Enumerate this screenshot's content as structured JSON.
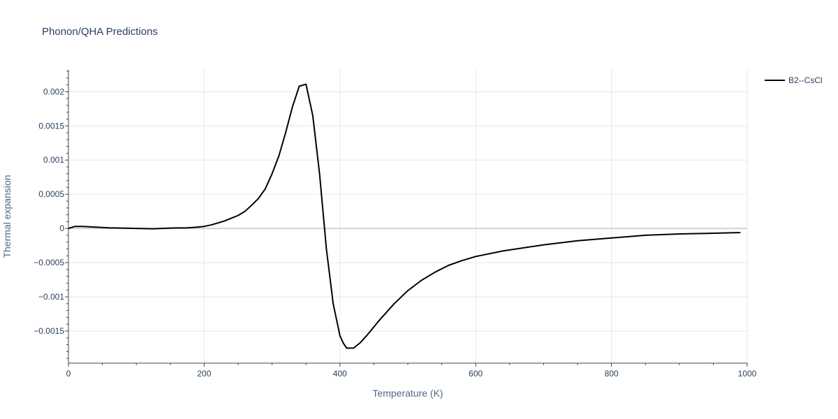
{
  "chart_data": {
    "type": "line",
    "title": "Phonon/QHA Predictions",
    "xlabel": "Temperature (K)",
    "ylabel": "Thermal expansion",
    "xlim": [
      0,
      1000
    ],
    "ylim": [
      -0.00197,
      0.00232
    ],
    "x_ticks": [
      0,
      200,
      400,
      600,
      800,
      1000
    ],
    "x_tick_labels": [
      "0",
      "200",
      "400",
      "600",
      "800",
      "1000"
    ],
    "y_ticks": [
      0.002,
      0.0015,
      0.001,
      0.0005,
      0,
      -0.0005,
      -0.001,
      -0.0015
    ],
    "y_tick_labels": [
      "0.002",
      "0.0015",
      "0.001",
      "0.0005",
      "0",
      "−0.0005",
      "−0.001",
      "−0.0015"
    ],
    "grid": true,
    "legend_position": "top-right",
    "colors": {
      "series": "#000000",
      "grid": "#e6e6e6",
      "zeroline": "#d2d2d2",
      "axis": "#444444"
    },
    "series": [
      {
        "name": "B2--CsCl",
        "color": "#000000",
        "x": [
          0,
          10,
          20,
          40,
          60,
          80,
          100,
          125,
          150,
          175,
          190,
          200,
          210,
          220,
          230,
          240,
          250,
          260,
          270,
          280,
          290,
          300,
          310,
          320,
          330,
          340,
          350,
          360,
          370,
          380,
          390,
          400,
          405,
          410,
          420,
          430,
          440,
          460,
          480,
          500,
          520,
          540,
          560,
          580,
          600,
          640,
          700,
          750,
          800,
          850,
          900,
          950,
          990
        ],
        "y": [
          0.0,
          3e-05,
          3e-05,
          2e-05,
          1e-05,
          5e-06,
          0.0,
          -5e-06,
          5e-06,
          1e-05,
          2e-05,
          3e-05,
          5e-05,
          8e-05,
          0.00011,
          0.00015,
          0.00019,
          0.00025,
          0.00034,
          0.00044,
          0.00058,
          0.0008,
          0.00106,
          0.0014,
          0.00178,
          0.00208,
          0.00211,
          0.00165,
          0.0008,
          -0.0003,
          -0.0011,
          -0.00157,
          -0.00168,
          -0.00175,
          -0.00175,
          -0.00167,
          -0.00156,
          -0.00132,
          -0.0011,
          -0.00091,
          -0.00076,
          -0.00064,
          -0.00054,
          -0.00047,
          -0.00041,
          -0.00033,
          -0.00024,
          -0.00018,
          -0.00014,
          -0.0001,
          -8e-05,
          -7e-05,
          -6e-05
        ]
      }
    ]
  }
}
